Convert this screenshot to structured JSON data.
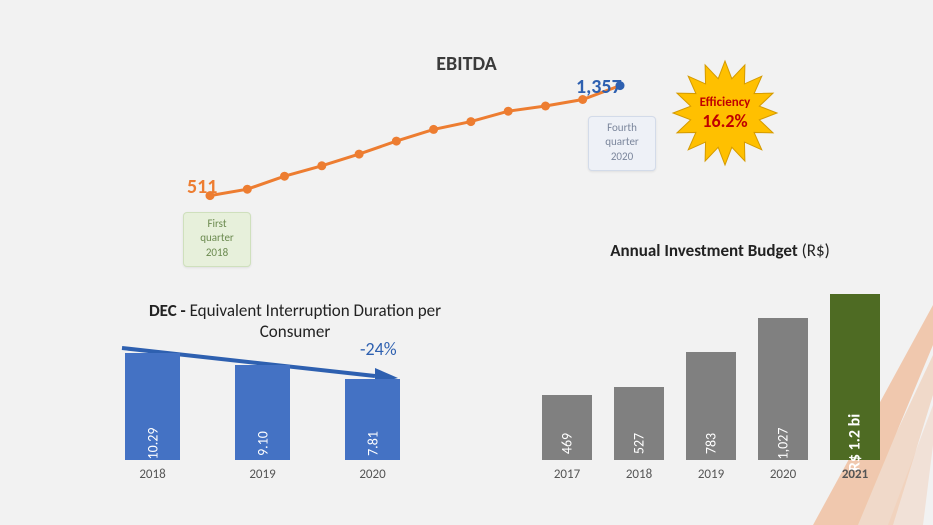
{
  "ebitda_chart": {
    "title": "EBITDA",
    "type": "line",
    "line_color": "#ed7d31",
    "marker_color": "#ed7d31",
    "marker_radius": 4.5,
    "line_width": 3,
    "x_index": [
      0,
      1,
      2,
      3,
      4,
      5,
      6,
      7,
      8,
      9,
      10,
      11
    ],
    "values": [
      511,
      560,
      660,
      740,
      830,
      930,
      1020,
      1080,
      1160,
      1200,
      1250,
      1357
    ],
    "end_marker_color": "#2e60b0",
    "start_value_label": "511",
    "start_value_color": "#ed7d31",
    "end_value_label": "1,357",
    "end_value_color": "#2e60b0",
    "first_callout": {
      "line1": "First",
      "line2": "quarter",
      "line3": "2018"
    },
    "fourth_callout": {
      "line1": "Fourth",
      "line2": "quarter",
      "line3": "2020"
    }
  },
  "starburst": {
    "fill": "#ffc000",
    "stroke": "#d49a00",
    "text_color": "#c00000",
    "line1": "Efficiency",
    "line2": "16.2%"
  },
  "dec_chart": {
    "title_bold": "DEC -",
    "title_rest": " Equivalent Interruption Duration per Consumer",
    "type": "bar",
    "pct_label": "-24%",
    "pct_color": "#2e60b0",
    "arrow_color": "#2e60b0",
    "bar_color": "#4472c4",
    "text_color": "#ffffff",
    "ylim_max": 12,
    "bars": [
      {
        "year": "2018",
        "value": 10.29,
        "label": "10.29"
      },
      {
        "year": "2019",
        "value": 9.1,
        "label": "9.10"
      },
      {
        "year": "2020",
        "value": 7.81,
        "label": "7.81"
      }
    ]
  },
  "inv_chart": {
    "title_bold": "Annual Investment Budget",
    "title_rest": " (R$)",
    "type": "bar",
    "gray_color": "#808080",
    "highlight_color": "#4e6b23",
    "text_color": "#ffffff",
    "ylim_max": 1300,
    "bars": [
      {
        "year": "2017",
        "value": 469,
        "label": "469",
        "highlight": false
      },
      {
        "year": "2018",
        "value": 527,
        "label": "527",
        "highlight": false
      },
      {
        "year": "2019",
        "value": 783,
        "label": "783",
        "highlight": false
      },
      {
        "year": "2020",
        "value": 1027,
        "label": "1,027",
        "highlight": false
      },
      {
        "year": "2021",
        "value": 1200,
        "label": "R$ 1.2 bi",
        "highlight": true
      }
    ]
  },
  "accent_color": "#ed7d31"
}
